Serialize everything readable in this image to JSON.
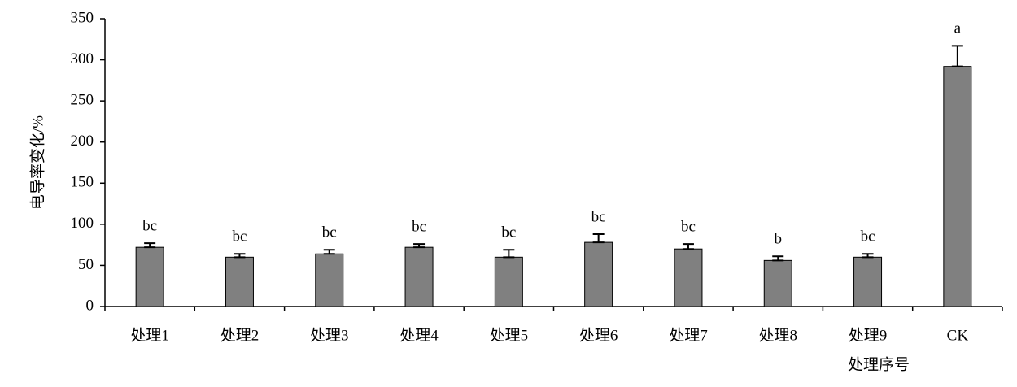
{
  "chart_data": {
    "type": "bar",
    "y_label": "电导率变化/%",
    "x_label": "处理序号",
    "categories": [
      "处理1",
      "处理2",
      "处理3",
      "处理4",
      "处理5",
      "处理6",
      "处理7",
      "处理8",
      "处理9",
      "CK"
    ],
    "values": [
      72,
      60,
      64,
      72,
      60,
      78,
      70,
      56,
      60,
      292
    ],
    "errors": [
      5,
      4,
      5,
      4,
      9,
      10,
      6,
      5,
      4,
      25
    ],
    "letters": [
      "bc",
      "bc",
      "bc",
      "bc",
      "bc",
      "bc",
      "bc",
      "b",
      "bc",
      "a"
    ],
    "color": "#808080",
    "ylim": [
      0,
      350
    ],
    "yticks": [
      0,
      50,
      100,
      150,
      200,
      250,
      300,
      350
    ]
  }
}
